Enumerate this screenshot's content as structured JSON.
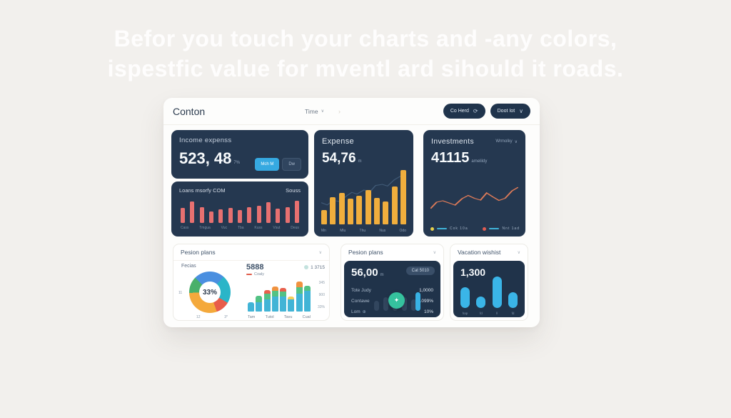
{
  "headline": {
    "line1": "Befor you touch your charts and -any colors,",
    "line2": "ispestfic value for mventl ard sihould it roads."
  },
  "icons": {
    "chevron_down": "∨",
    "refresh": "⟳",
    "faint_arrow": "›",
    "sprout": "✦",
    "plus_circle": "⊕"
  },
  "dash": {
    "header": {
      "title": "Conton",
      "time_label": "Time",
      "buttons": [
        {
          "label": "Co Herd"
        },
        {
          "label": "Doot Iot"
        }
      ]
    },
    "income": {
      "title": "Income expenss",
      "value": "523, 48",
      "suffix": "7%",
      "toggles": {
        "active": "Mch M",
        "inactive": "Dw"
      }
    },
    "loans": {
      "title": "Loans msorfy COM",
      "right": "Souss",
      "values": [
        62,
        88,
        66,
        48,
        56,
        62,
        52,
        64,
        70,
        84,
        58,
        66,
        92
      ],
      "x_labels": [
        "Cass",
        "Tmgua",
        "Vuc",
        "Tba",
        "Kuss",
        "Vsut",
        "Deus"
      ]
    },
    "expense": {
      "title": "Expense",
      "value": "54,76",
      "suffix": "m",
      "values": [
        25,
        48,
        55,
        45,
        50,
        60,
        46,
        40,
        66,
        95
      ],
      "x_labels": [
        "Mn",
        "Mlu",
        "Thu",
        "Nus",
        "Odo"
      ],
      "line": [
        [
          0,
          62
        ],
        [
          7,
          66
        ],
        [
          14,
          58
        ],
        [
          22,
          60
        ],
        [
          30,
          50
        ],
        [
          36,
          44
        ],
        [
          42,
          47
        ],
        [
          50,
          40
        ],
        [
          58,
          42
        ],
        [
          64,
          32
        ],
        [
          72,
          30
        ],
        [
          78,
          33
        ],
        [
          86,
          22
        ],
        [
          100,
          10
        ]
      ]
    },
    "investments": {
      "title": "Investments",
      "dropdown": "Wrmolky",
      "value": "41115",
      "suffix": "amelildy",
      "line": [
        [
          0,
          80
        ],
        [
          7,
          62
        ],
        [
          14,
          58
        ],
        [
          21,
          64
        ],
        [
          28,
          70
        ],
        [
          36,
          52
        ],
        [
          43,
          43
        ],
        [
          50,
          51
        ],
        [
          57,
          56
        ],
        [
          64,
          36
        ],
        [
          71,
          47
        ],
        [
          78,
          57
        ],
        [
          85,
          51
        ],
        [
          93,
          30
        ],
        [
          100,
          20
        ]
      ],
      "legend": [
        {
          "color": "#e8d24b",
          "label": "Cok  10a"
        },
        {
          "color": "#e05c52",
          "label": "Nnt  1ad"
        }
      ]
    },
    "pension_a": {
      "header": "Pesion plans",
      "donut_label": "Fecias",
      "donut_center": "33%",
      "donut_side": "11",
      "donut_bottom": [
        "12",
        "3*"
      ],
      "donut": {
        "from": 315,
        "segments": [
          [
            "#4a8fe0",
            24
          ],
          [
            "#2ab5c8",
            22
          ],
          [
            "#e85c4a",
            11
          ],
          [
            "#f4a93c",
            30
          ],
          [
            "#49b06a",
            13
          ]
        ]
      },
      "stat_value": "5888",
      "stat_badge": "1 3715",
      "legend_label": "Coaly",
      "stacked": [
        [
          [
            "#41b4d6",
            27
          ]
        ],
        [
          [
            "#41b4d6",
            27
          ],
          [
            "#53c284",
            17
          ]
        ],
        [
          [
            "#41b4d6",
            35
          ],
          [
            "#53c284",
            15
          ],
          [
            "#e8604c",
            10
          ]
        ],
        [
          [
            "#41b4d6",
            42
          ],
          [
            "#53c284",
            17
          ],
          [
            "#f0923f",
            12
          ]
        ],
        [
          [
            "#41b4d6",
            42
          ],
          [
            "#53c284",
            15
          ],
          [
            "#e8604c",
            10
          ]
        ],
        [
          [
            "#41b4d6",
            35
          ],
          [
            "#f2cf5b",
            8
          ]
        ],
        [
          [
            "#41b4d6",
            50
          ],
          [
            "#53c284",
            19
          ],
          [
            "#f0923f",
            15
          ]
        ],
        [
          [
            "#41b4d6",
            58
          ],
          [
            "#53c284",
            15
          ]
        ]
      ],
      "y_labels": [
        "345",
        "900",
        "33%"
      ],
      "x_labels": [
        "Tam",
        "Tutol",
        "Tavu",
        "Cual"
      ]
    },
    "pension_b": {
      "header": "Pesion plans",
      "value": "56,00",
      "suffix": "m",
      "pill": "Cat 5010",
      "rows": [
        {
          "label": "Tote Judy",
          "value": "1,0000"
        },
        {
          "label": "Contawe",
          "value": "1099%"
        },
        {
          "label": "Lom",
          "value": "10%"
        }
      ],
      "minibars": [
        45,
        60,
        70,
        60,
        50
      ],
      "cyanbar": 82
    },
    "vacation": {
      "header": "Vacation wishist",
      "value": "1,300",
      "values": [
        62,
        34,
        95,
        48
      ],
      "x_labels": [
        "hap",
        "fd",
        "ll",
        "fd"
      ]
    }
  },
  "colors": {
    "page_bg": "#f2f0ed",
    "navy": "#253850",
    "navy_deep": "#20334a",
    "cyan": "#38aee3",
    "red_bar": "#e77070",
    "yellow_bar": "#f0ae3d",
    "coral_line": "#dc7a58",
    "teal_circle": "#35c29e"
  }
}
